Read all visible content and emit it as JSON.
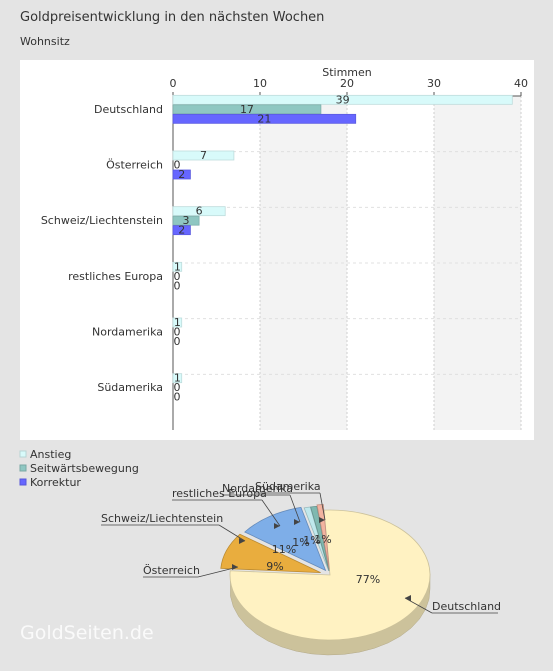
{
  "title": "Goldpreisentwicklung in den nächsten Wochen",
  "subtitle": "Wohnsitz",
  "watermark": "GoldSeiten.de",
  "chart_data": [
    {
      "type": "bar",
      "orientation": "horizontal",
      "xlabel": "Stimmen",
      "xlim": [
        0,
        40
      ],
      "xticks": [
        0,
        10,
        20,
        30,
        40
      ],
      "categories": [
        "Deutschland",
        "Österreich",
        "Schweiz/Liechtenstein",
        "restliches Europa",
        "Nordamerika",
        "Südamerika"
      ],
      "series": [
        {
          "name": "Anstieg",
          "color": "#d8fafa",
          "values": [
            39,
            7,
            6,
            1,
            1,
            1
          ]
        },
        {
          "name": "Seitwärtsbewegung",
          "color": "#8fc7c2",
          "values": [
            17,
            0,
            3,
            0,
            0,
            0
          ]
        },
        {
          "name": "Korrektur",
          "color": "#6666ff",
          "values": [
            21,
            2,
            2,
            0,
            0,
            0
          ]
        }
      ],
      "legend": "bottom-left",
      "grid": true
    },
    {
      "type": "pie",
      "slices": [
        {
          "label": "Deutschland",
          "value": 77,
          "display": "77%",
          "color": "#fff2c2"
        },
        {
          "label": "Österreich",
          "value": 9,
          "display": "9%",
          "color": "#e9ad3e"
        },
        {
          "label": "Schweiz/Liechtenstein",
          "value": 11,
          "display": "11%",
          "color": "#7eaee8"
        },
        {
          "label": "restliches Europa",
          "value": 1,
          "display": "1%",
          "color": "#bfe8ec"
        },
        {
          "label": "Nordamerika",
          "value": 1,
          "display": "1%",
          "color": "#7fb8b0"
        },
        {
          "label": "Südamerika",
          "value": 1,
          "display": "1%",
          "color": "#f2b3a0"
        }
      ]
    }
  ]
}
